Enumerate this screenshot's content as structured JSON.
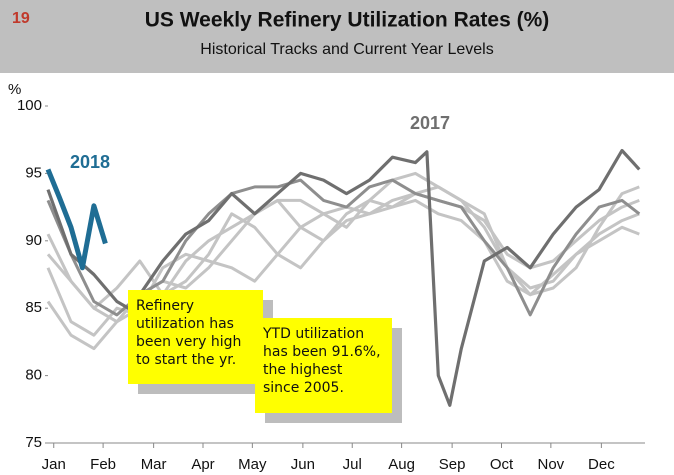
{
  "chart_data": {
    "type": "line",
    "page_number": "19",
    "title": "US Weekly Refinery Utilization Rates (%)",
    "subtitle": "Historical Tracks and Current Year Levels",
    "y_label": "%",
    "xlim": [
      0,
      52
    ],
    "xticks": [
      {
        "value": 0.5,
        "label": "Jan"
      },
      {
        "value": 4.8,
        "label": "Feb"
      },
      {
        "value": 9.2,
        "label": "Mar"
      },
      {
        "value": 13.5,
        "label": "Apr"
      },
      {
        "value": 17.8,
        "label": "May"
      },
      {
        "value": 22.2,
        "label": "Jun"
      },
      {
        "value": 26.5,
        "label": "Jul"
      },
      {
        "value": 30.8,
        "label": "Aug"
      },
      {
        "value": 35.2,
        "label": "Sep"
      },
      {
        "value": 39.5,
        "label": "Oct"
      },
      {
        "value": 43.8,
        "label": "Nov"
      },
      {
        "value": 48.2,
        "label": "Dec"
      }
    ],
    "ylim": [
      75,
      100
    ],
    "yticks": [
      75,
      80,
      85,
      90,
      95,
      100
    ],
    "x": [
      0,
      2,
      4,
      6,
      8,
      10,
      12,
      14,
      16,
      18,
      20,
      22,
      24,
      26,
      28,
      30,
      32,
      34,
      36,
      38,
      40,
      42,
      44,
      46,
      48,
      50,
      51.5
    ],
    "series": [
      {
        "color": "#c4c4c4",
        "values": [
          89,
          87,
          85,
          84,
          85,
          88,
          89,
          88.5,
          88,
          87,
          89,
          91,
          92,
          92.5,
          92,
          93,
          93.5,
          93,
          92.5,
          91.5,
          89,
          88,
          88.5,
          90,
          91.5,
          92.5,
          93
        ]
      },
      {
        "color": "#c4c4c4",
        "values": [
          85.5,
          83,
          82,
          84,
          86,
          87,
          86.5,
          88,
          90,
          92,
          93,
          91,
          90,
          92,
          93,
          94.5,
          95,
          94,
          93,
          92,
          88,
          86.5,
          87,
          89,
          90.5,
          91.5,
          92
        ]
      },
      {
        "color": "#c4c4c4",
        "values": [
          90.5,
          87,
          85,
          86.5,
          88.5,
          86,
          87,
          89,
          92,
          91,
          89,
          88,
          90,
          91.5,
          92,
          92.5,
          93,
          92,
          91.5,
          90,
          87,
          86,
          87.5,
          89,
          90,
          91,
          90.5
        ]
      },
      {
        "color": "#c4c4c4",
        "values": [
          88,
          84,
          83,
          85,
          84.5,
          86,
          88.5,
          90,
          91,
          92,
          93,
          93,
          92,
          91,
          93,
          92.5,
          93.5,
          94,
          93,
          91,
          88,
          86,
          86.5,
          88,
          91,
          93.5,
          94
        ]
      },
      {
        "color": "#8e8e8e",
        "values": [
          93,
          89,
          85.5,
          84.5,
          86,
          87,
          90,
          92,
          93.5,
          94,
          94,
          94.5,
          93,
          92.5,
          94,
          94.5,
          93.5,
          93,
          92.5,
          90,
          88,
          84.5,
          88,
          90.5,
          92.5,
          93,
          92
        ]
      },
      {
        "name": "2017",
        "color": "#6f6f6f",
        "x": [
          0,
          2,
          4,
          6,
          7,
          8,
          10,
          12,
          14,
          16,
          18,
          20,
          22,
          24,
          26,
          28,
          30,
          32,
          33,
          34,
          35,
          36,
          38,
          40,
          42,
          44,
          46,
          48,
          50,
          51.5
        ],
        "values": [
          93.8,
          89,
          87.5,
          85.5,
          85,
          86,
          88.5,
          90.5,
          91.5,
          93.5,
          92,
          93.5,
          95,
          94.5,
          93.5,
          94.5,
          96.2,
          95.8,
          96.6,
          80,
          77.8,
          82,
          88.5,
          89.5,
          88,
          90.5,
          92.5,
          93.8,
          96.7,
          95.3
        ]
      },
      {
        "name": "2018",
        "color": "#1f6d94",
        "x": [
          0,
          1,
          2,
          3,
          4,
          5
        ],
        "values": [
          95.3,
          93.2,
          91,
          88,
          92.6,
          89.8
        ]
      }
    ],
    "annotations": [
      [
        "Refinery",
        "utilization has",
        "been very high",
        "to start the yr."
      ],
      [
        "YTD utilization",
        "has been 91.6%,",
        "the highest",
        "since 2005."
      ]
    ]
  }
}
